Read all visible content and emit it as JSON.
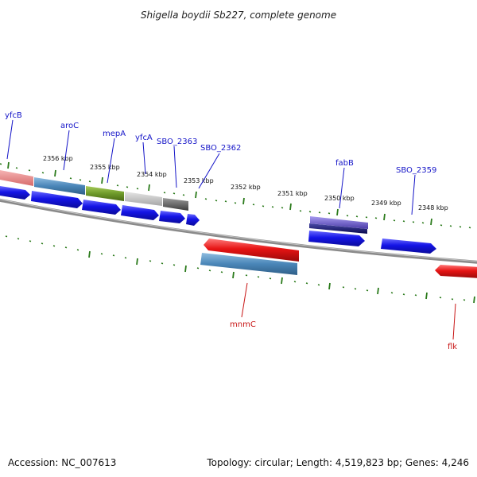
{
  "title": "Shigella boydii Sb227, complete genome",
  "footer": {
    "accession": "Accession: NC_007613",
    "summary": "Topology: circular; Length: 4,519,823 bp; Genes: 4,246"
  },
  "scale_labels": [
    "2356 kbp",
    "2355 kbp",
    "2354 kbp",
    "2353 kbp",
    "2352 kbp",
    "2351 kbp",
    "2350 kbp",
    "2349 kbp",
    "2348 kbp"
  ],
  "gene_labels": {
    "forward": [
      "yfcB",
      "aroC",
      "mepA",
      "yfcA",
      "SBO_2363",
      "SBO_2362",
      "fabB",
      "SBO_2359"
    ],
    "reverse": [
      "mnmC",
      "flk"
    ]
  },
  "colors": {
    "forward_label": "#1515c8",
    "reverse_label": "#c81515",
    "tick": "#2a7a1a",
    "backbone": "#808080",
    "cds_forward": "#1010e0",
    "cds_reverse": "#e01010",
    "feature_salmon": "#e98a8a",
    "feature_steelblue": "#4a86b8",
    "feature_olive": "#6e9a2a",
    "feature_lightgray": "#c4c4c4",
    "feature_darkgray": "#6a6a6a",
    "feature_slateblue": "#6a5ac8",
    "feature_navy": "#141470"
  }
}
